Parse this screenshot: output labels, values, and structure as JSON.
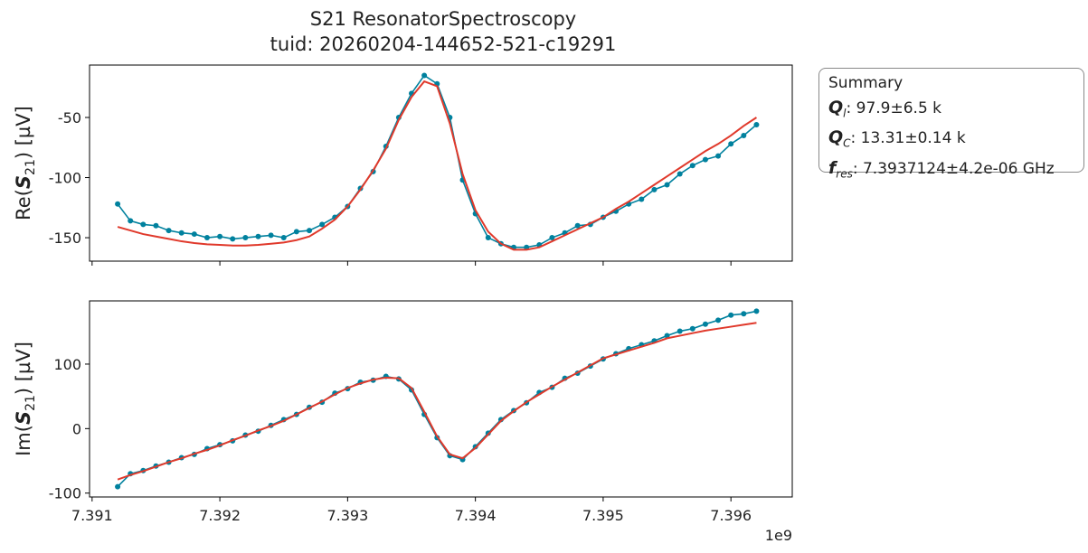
{
  "title": "S21 ResonatorSpectroscopy",
  "subtitle": "tuid: 20260204-144652-521-c19291",
  "colors": {
    "data": "#00819e",
    "fit": "#e0392b"
  },
  "summary": {
    "title": "Summary",
    "items": [
      {
        "sym": "Q",
        "sub": "l",
        "value": ": 97.9±6.5 k"
      },
      {
        "sym": "Q",
        "sub": "C",
        "value": ": 13.31±0.14 k"
      },
      {
        "sym": "f",
        "sub": "res",
        "value": ": 7.3937124±4.2e-06 GHz"
      }
    ]
  },
  "chart_data": [
    {
      "type": "line",
      "ylabel": {
        "prefix": "Re(",
        "var": "S",
        "sub": "21",
        "suffix": ") [µV]"
      },
      "xlim": [
        7.39098,
        7.39648
      ],
      "ylim": [
        -169.5,
        -6.4
      ],
      "yticks": [
        -50,
        -100,
        -150
      ],
      "xticks": [
        7.391,
        7.392,
        7.393,
        7.394,
        7.395,
        7.396
      ],
      "show_xticklabels": false,
      "x_start": 7.3912,
      "x_step": 0.0001,
      "series": [
        {
          "role": "data",
          "marker": "dot",
          "values": [
            -122,
            -136,
            -139,
            -140,
            -144,
            -146,
            -147,
            -150,
            -149,
            -151,
            -150,
            -149,
            -148,
            -150,
            -145,
            -144,
            -139,
            -133,
            -124,
            -109,
            -95,
            -74,
            -50,
            -30,
            -15,
            -22,
            -50,
            -102,
            -130,
            -150,
            -155,
            -158,
            -158,
            -156,
            -150,
            -146,
            -140,
            -139,
            -133,
            -128,
            -122,
            -118,
            -110,
            -106,
            -97,
            -90,
            -85,
            -82,
            -72,
            -65,
            -56
          ]
        },
        {
          "role": "fit",
          "values": [
            -141,
            -144,
            -147,
            -149,
            -151,
            -153,
            -154.5,
            -155.5,
            -156,
            -156.5,
            -156.5,
            -156,
            -155,
            -154,
            -152,
            -149,
            -142.5,
            -135,
            -124,
            -110,
            -94,
            -76,
            -52,
            -33,
            -20,
            -24,
            -55,
            -97,
            -127,
            -145,
            -155,
            -160,
            -160,
            -158,
            -153,
            -148,
            -143,
            -138,
            -133,
            -126,
            -120,
            -113,
            -106,
            -99,
            -92,
            -85,
            -78,
            -72,
            -65,
            -57,
            -50
          ]
        }
      ]
    },
    {
      "type": "line",
      "ylabel": {
        "prefix": "Im(",
        "var": "S",
        "sub": "21",
        "suffix": ") [µV]"
      },
      "xlim": [
        7.39098,
        7.39648
      ],
      "ylim": [
        -106,
        198
      ],
      "yticks": [
        100,
        0,
        -100
      ],
      "xticks": [
        7.391,
        7.392,
        7.393,
        7.394,
        7.395,
        7.396
      ],
      "xticklabels": [
        "7.391",
        "7.392",
        "7.393",
        "7.394",
        "7.395",
        "7.396"
      ],
      "show_xticklabels": true,
      "x_offset_label": "1e9",
      "x_start": 7.3912,
      "x_step": 0.0001,
      "series": [
        {
          "role": "data",
          "marker": "dot",
          "values": [
            -90,
            -70,
            -65,
            -58,
            -52,
            -45,
            -40,
            -31,
            -25,
            -19,
            -10,
            -4,
            5,
            14,
            22,
            33,
            41,
            55,
            62,
            72,
            75,
            81,
            77,
            60,
            22,
            -14,
            -42,
            -48,
            -28,
            -7,
            14,
            28,
            40,
            56,
            64,
            78,
            86,
            97,
            108,
            116,
            124,
            130,
            136,
            144,
            151,
            155,
            162,
            168,
            176,
            178,
            182
          ]
        },
        {
          "role": "fit",
          "values": [
            -79,
            -72,
            -66,
            -59,
            -52,
            -46,
            -39,
            -33,
            -26,
            -18,
            -11,
            -3,
            4,
            12,
            22,
            32,
            42,
            53,
            63,
            70,
            76,
            79,
            78,
            63,
            26,
            -12,
            -40,
            -46,
            -30,
            -9,
            12,
            27,
            41,
            53,
            65,
            76,
            87,
            98,
            109,
            115,
            121,
            127,
            133,
            140,
            144,
            148,
            152,
            155,
            158,
            161,
            164
          ]
        }
      ]
    }
  ]
}
